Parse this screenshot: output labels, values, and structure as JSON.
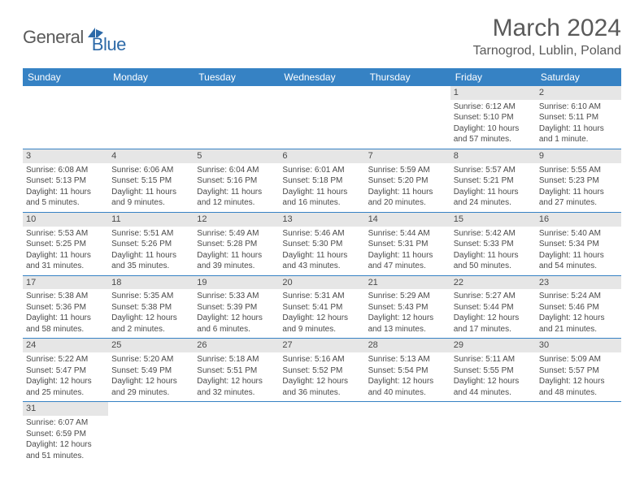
{
  "logo": {
    "general": "General",
    "blue": "Blue"
  },
  "title": "March 2024",
  "location": "Tarnogrod, Lublin, Poland",
  "colors": {
    "header_bg": "#3682c4",
    "header_text": "#ffffff",
    "daynum_bg": "#e6e6e6",
    "text": "#4a4a4a",
    "logo_gray": "#5a5a5a",
    "logo_blue": "#2d6aa8",
    "border": "#3682c4",
    "background": "#ffffff"
  },
  "weekdays": [
    "Sunday",
    "Monday",
    "Tuesday",
    "Wednesday",
    "Thursday",
    "Friday",
    "Saturday"
  ],
  "weeks": [
    [
      null,
      null,
      null,
      null,
      null,
      {
        "n": "1",
        "sr": "Sunrise: 6:12 AM",
        "ss": "Sunset: 5:10 PM",
        "dl": "Daylight: 10 hours and 57 minutes."
      },
      {
        "n": "2",
        "sr": "Sunrise: 6:10 AM",
        "ss": "Sunset: 5:11 PM",
        "dl": "Daylight: 11 hours and 1 minute."
      }
    ],
    [
      {
        "n": "3",
        "sr": "Sunrise: 6:08 AM",
        "ss": "Sunset: 5:13 PM",
        "dl": "Daylight: 11 hours and 5 minutes."
      },
      {
        "n": "4",
        "sr": "Sunrise: 6:06 AM",
        "ss": "Sunset: 5:15 PM",
        "dl": "Daylight: 11 hours and 9 minutes."
      },
      {
        "n": "5",
        "sr": "Sunrise: 6:04 AM",
        "ss": "Sunset: 5:16 PM",
        "dl": "Daylight: 11 hours and 12 minutes."
      },
      {
        "n": "6",
        "sr": "Sunrise: 6:01 AM",
        "ss": "Sunset: 5:18 PM",
        "dl": "Daylight: 11 hours and 16 minutes."
      },
      {
        "n": "7",
        "sr": "Sunrise: 5:59 AM",
        "ss": "Sunset: 5:20 PM",
        "dl": "Daylight: 11 hours and 20 minutes."
      },
      {
        "n": "8",
        "sr": "Sunrise: 5:57 AM",
        "ss": "Sunset: 5:21 PM",
        "dl": "Daylight: 11 hours and 24 minutes."
      },
      {
        "n": "9",
        "sr": "Sunrise: 5:55 AM",
        "ss": "Sunset: 5:23 PM",
        "dl": "Daylight: 11 hours and 27 minutes."
      }
    ],
    [
      {
        "n": "10",
        "sr": "Sunrise: 5:53 AM",
        "ss": "Sunset: 5:25 PM",
        "dl": "Daylight: 11 hours and 31 minutes."
      },
      {
        "n": "11",
        "sr": "Sunrise: 5:51 AM",
        "ss": "Sunset: 5:26 PM",
        "dl": "Daylight: 11 hours and 35 minutes."
      },
      {
        "n": "12",
        "sr": "Sunrise: 5:49 AM",
        "ss": "Sunset: 5:28 PM",
        "dl": "Daylight: 11 hours and 39 minutes."
      },
      {
        "n": "13",
        "sr": "Sunrise: 5:46 AM",
        "ss": "Sunset: 5:30 PM",
        "dl": "Daylight: 11 hours and 43 minutes."
      },
      {
        "n": "14",
        "sr": "Sunrise: 5:44 AM",
        "ss": "Sunset: 5:31 PM",
        "dl": "Daylight: 11 hours and 47 minutes."
      },
      {
        "n": "15",
        "sr": "Sunrise: 5:42 AM",
        "ss": "Sunset: 5:33 PM",
        "dl": "Daylight: 11 hours and 50 minutes."
      },
      {
        "n": "16",
        "sr": "Sunrise: 5:40 AM",
        "ss": "Sunset: 5:34 PM",
        "dl": "Daylight: 11 hours and 54 minutes."
      }
    ],
    [
      {
        "n": "17",
        "sr": "Sunrise: 5:38 AM",
        "ss": "Sunset: 5:36 PM",
        "dl": "Daylight: 11 hours and 58 minutes."
      },
      {
        "n": "18",
        "sr": "Sunrise: 5:35 AM",
        "ss": "Sunset: 5:38 PM",
        "dl": "Daylight: 12 hours and 2 minutes."
      },
      {
        "n": "19",
        "sr": "Sunrise: 5:33 AM",
        "ss": "Sunset: 5:39 PM",
        "dl": "Daylight: 12 hours and 6 minutes."
      },
      {
        "n": "20",
        "sr": "Sunrise: 5:31 AM",
        "ss": "Sunset: 5:41 PM",
        "dl": "Daylight: 12 hours and 9 minutes."
      },
      {
        "n": "21",
        "sr": "Sunrise: 5:29 AM",
        "ss": "Sunset: 5:43 PM",
        "dl": "Daylight: 12 hours and 13 minutes."
      },
      {
        "n": "22",
        "sr": "Sunrise: 5:27 AM",
        "ss": "Sunset: 5:44 PM",
        "dl": "Daylight: 12 hours and 17 minutes."
      },
      {
        "n": "23",
        "sr": "Sunrise: 5:24 AM",
        "ss": "Sunset: 5:46 PM",
        "dl": "Daylight: 12 hours and 21 minutes."
      }
    ],
    [
      {
        "n": "24",
        "sr": "Sunrise: 5:22 AM",
        "ss": "Sunset: 5:47 PM",
        "dl": "Daylight: 12 hours and 25 minutes."
      },
      {
        "n": "25",
        "sr": "Sunrise: 5:20 AM",
        "ss": "Sunset: 5:49 PM",
        "dl": "Daylight: 12 hours and 29 minutes."
      },
      {
        "n": "26",
        "sr": "Sunrise: 5:18 AM",
        "ss": "Sunset: 5:51 PM",
        "dl": "Daylight: 12 hours and 32 minutes."
      },
      {
        "n": "27",
        "sr": "Sunrise: 5:16 AM",
        "ss": "Sunset: 5:52 PM",
        "dl": "Daylight: 12 hours and 36 minutes."
      },
      {
        "n": "28",
        "sr": "Sunrise: 5:13 AM",
        "ss": "Sunset: 5:54 PM",
        "dl": "Daylight: 12 hours and 40 minutes."
      },
      {
        "n": "29",
        "sr": "Sunrise: 5:11 AM",
        "ss": "Sunset: 5:55 PM",
        "dl": "Daylight: 12 hours and 44 minutes."
      },
      {
        "n": "30",
        "sr": "Sunrise: 5:09 AM",
        "ss": "Sunset: 5:57 PM",
        "dl": "Daylight: 12 hours and 48 minutes."
      }
    ],
    [
      {
        "n": "31",
        "sr": "Sunrise: 6:07 AM",
        "ss": "Sunset: 6:59 PM",
        "dl": "Daylight: 12 hours and 51 minutes."
      },
      null,
      null,
      null,
      null,
      null,
      null
    ]
  ]
}
